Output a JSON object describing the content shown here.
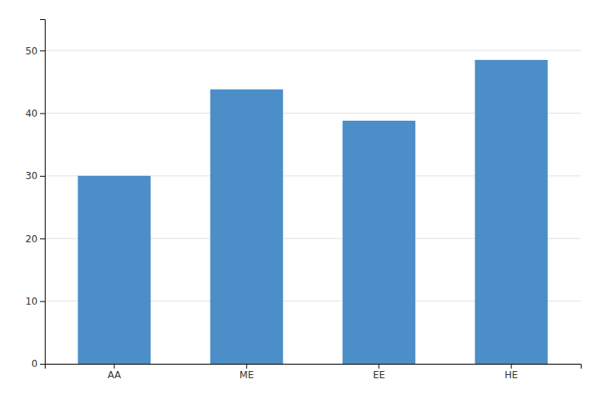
{
  "chart_data": {
    "type": "bar",
    "categories": [
      "AA",
      "ME",
      "EE",
      "HE"
    ],
    "values": [
      30.0,
      43.8,
      38.8,
      48.5
    ],
    "color": "#4b8ec8",
    "ylim": [
      0,
      55
    ],
    "yticks": [
      0,
      10,
      20,
      30,
      40,
      50
    ],
    "grid": true
  }
}
